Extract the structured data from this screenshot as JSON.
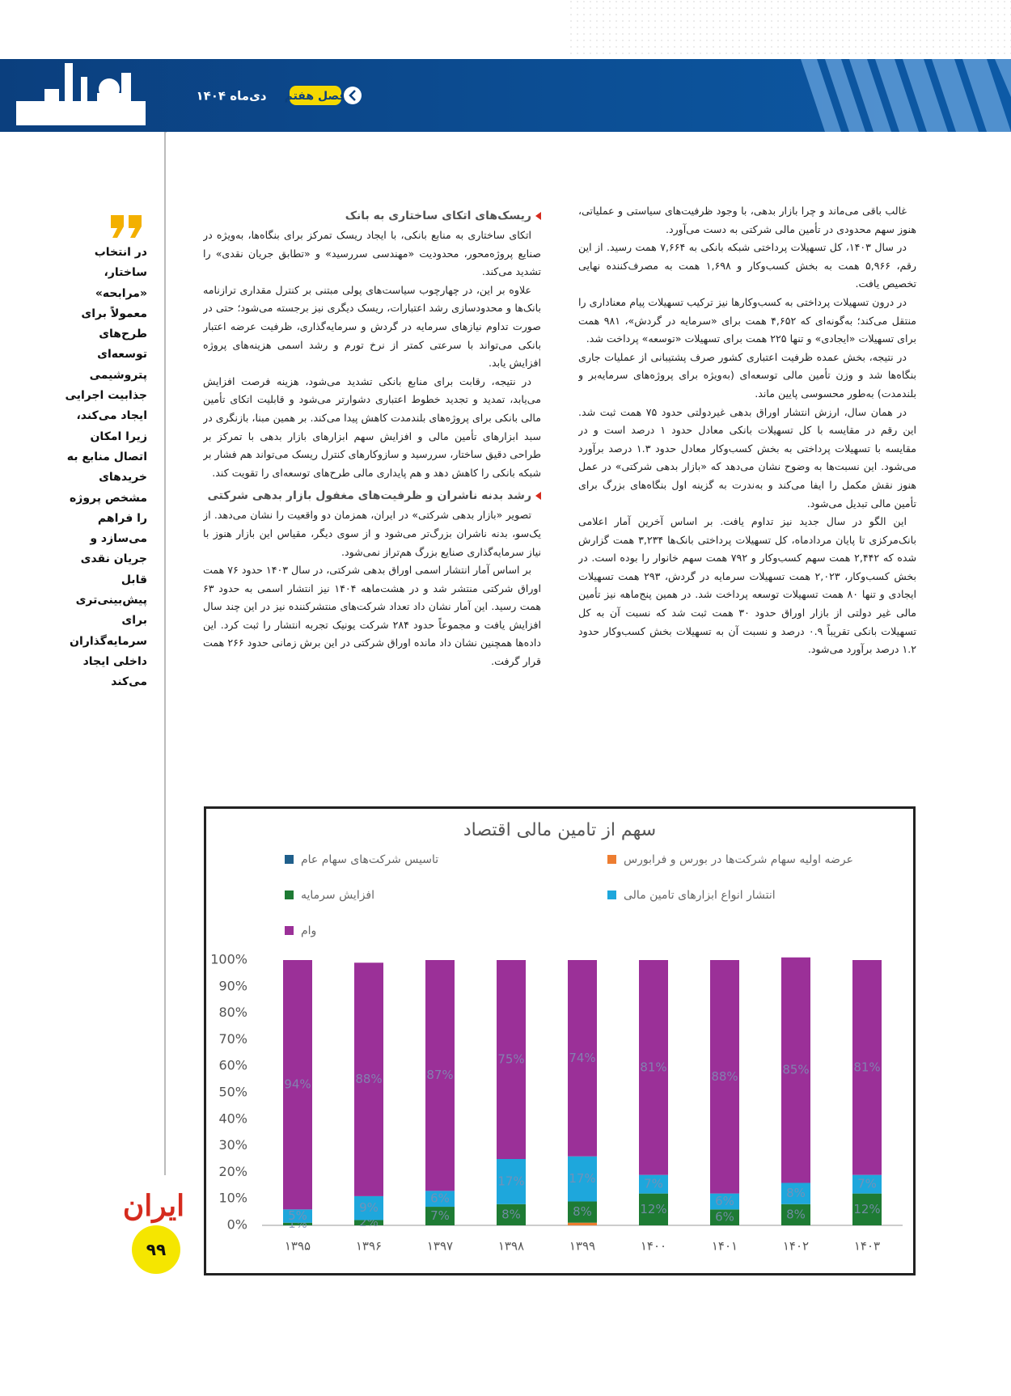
{
  "header": {
    "issue": "دی‌ماه ۱۴۰۴",
    "section": "فصل هفتم"
  },
  "sidebar": {
    "quote": "در انتخاب ساختار، «مرابحه» معمولاً برای طرح‌های توسعه‌ای پتروشیمی جذابیت اجرایی ایجاد می‌کند، زیرا امکان اتصال منابع به خریدهای مشخص پروژه را فراهم می‌سازد و جریان نقدی قابل پیش‌بینی‌تری برای سرمایه‌گذاران داخلی ایجاد می‌کند",
    "logo": "ایران",
    "page_number": "۹۹"
  },
  "right_column": {
    "paragraphs": [
      "غالب باقی می‌ماند و چرا بازار بدهی، با وجود ظرفیت‌های سیاستی و عملیاتی، هنوز سهم محدودی در تأمین مالی شرکتی به دست می‌آورد.",
      "در سال ۱۴۰۳، کل تسهیلات پرداختی شبکه بانکی به ۷,۶۶۴ همت رسید. از این رقم، ۵,۹۶۶ همت به بخش کسب‌وکار و ۱,۶۹۸ همت به مصرف‌کننده نهایی تخصیص یافت.",
      "در درون تسهیلات پرداختی به کسب‌وکارها نیز ترکیب تسهیلات پیام معناداری را منتقل می‌کند؛ به‌گونه‌ای که ۴,۶۵۲ همت برای «سرمایه در گردش»، ۹۸۱ همت برای تسهیلات «ایجادی» و تنها ۲۲۵ همت برای تسهیلات «توسعه» پرداخت شد.",
      "در نتیجه، بخش عمده ظرفیت اعتباری کشور صرف پشتیبانی از عملیات جاری بنگاه‌ها شد و وزن تأمین مالی توسعه‌ای (به‌ویژه برای پروژه‌های سرمایه‌بر و بلندمدت) به‌طور محسوسی پایین ماند.",
      "در همان سال، ارزش انتشار اوراق بدهی غیردولتی حدود ۷۵ همت ثبت شد. این رقم در مقایسه با کل تسهیلات بانکی معادل حدود ۱ درصد است و در مقایسه با تسهیلات پرداختی به بخش کسب‌وکار معادل حدود ۱.۳ درصد برآورد می‌شود. این نسبت‌ها به وضوح نشان می‌دهد که «بازار بدهی شرکتی» در عمل هنوز نقش مکمل را ایفا می‌کند و به‌ندرت به گزینه اول بنگاه‌های بزرگ برای تأمین مالی تبدیل می‌شود.",
      "این الگو در سال جدید نیز تداوم یافت. بر اساس آخرین آمار اعلامی بانک‌مرکزی تا پایان مردادماه، کل تسهیلات پرداختی بانک‌ها ۳,۲۳۴ همت گزارش شده که ۲,۴۴۲ همت سهم کسب‌وکار و ۷۹۲ همت سهم خانوار را بوده است. در بخش کسب‌وکار، ۲,۰۲۳ همت تسهیلات سرمایه در گردش، ۲۹۳ همت تسهیلات ایجادی و تنها ۸۰ همت تسهیلات توسعه پرداخت شد. در همین پنج‌ماهه نیز تأمین مالی غیر دولتی از بازار اوراق حدود ۳۰ همت ثبت شد که نسبت آن به کل تسهیلات بانکی تقریباً ۰.۹ درصد و نسبت آن به تسهیلات بخش کسب‌وکار حدود ۱.۲ درصد برآورد می‌شود."
    ]
  },
  "left_column": {
    "sections": [
      {
        "heading": "ریسک‌های اتکای ساختاری به بانک",
        "paragraphs": [
          "اتکای ساختاری به منابع بانکی، با ایجاد ریسک تمرکز برای بنگاه‌ها، به‌ویژه در صنایع پروژه‌محور، محدودیت «مهندسی سررسید» و «تطابق جریان نقدی» را تشدید می‌کند.",
          "علاوه بر این، در چهارچوب سیاست‌های پولی مبتنی بر کنترل مقداری ترازنامه بانک‌ها و محدودسازی رشد اعتبارات، ریسک دیگری نیز برجسته می‌شود؛ حتی در صورت تداوم نیازهای سرمایه در گردش و سرمایه‌گذاری، ظرفیت عرضه اعتبار بانکی می‌تواند با سرعتی کمتر از نرخ تورم و رشد اسمی هزینه‌های پروژه افزایش یابد.",
          "در نتیجه، رقابت برای منابع بانکی تشدید می‌شود، هزینه فرصت افزایش می‌یابد، تمدید و تجدید خطوط اعتباری دشوارتر می‌شود و قابلیت اتکای تأمین مالی بانکی برای پروژه‌های بلندمدت کاهش پیدا می‌کند. بر همین مبنا، بازنگری در سبد ابزارهای تأمین مالی و افزایش سهم ابزارهای بازار بدهی با تمرکز بر طراحی دقیق ساختار، سررسید و سازوکارهای کنترل ریسک می‌تواند هم فشار بر شبکه بانکی را کاهش دهد و هم پایداری مالی طرح‌های توسعه‌ای را تقویت کند."
        ]
      },
      {
        "heading": "رشد بدنه ناشران و ظرفیت‌های مغفول بازار بدهی شرکتی",
        "paragraphs": [
          "تصویر «بازار بدهی شرکتی» در ایران، همزمان دو واقعیت را نشان می‌دهد. از یک‌سو، بدنه ناشران بزرگ‌تر می‌شود و از سوی دیگر، مقیاس این بازار هنوز با نیاز سرمایه‌گذاری صنایع بزرگ هم‌تراز نمی‌شود.",
          "بر اساس آمار انتشار اسمی اوراق بدهی شرکتی، در سال ۱۴۰۳ حدود ۷۶ همت اوراق شرکتی منتشر شد و در هشت‌ماهه ۱۴۰۴ نیز انتشار اسمی به حدود ۶۳ همت رسید. این آمار نشان داد تعداد شرکت‌های منتشرکننده نیز در این چند سال افزایش یافت و مجموعاً حدود ۲۸۴ شرکت یونیک تجربه انتشار را ثبت کرد. این داده‌ها همچنین نشان داد مانده اوراق شرکتی در این برش زمانی حدود ۲۶۶ همت قرار گرفت."
        ]
      }
    ]
  },
  "chart_data": {
    "type": "stacked_bar",
    "title": "سهم از تامین مالی اقتصاد",
    "categories": [
      "۱۳۹۵",
      "۱۳۹۶",
      "۱۳۹۷",
      "۱۳۹۸",
      "۱۳۹۹",
      "۱۴۰۰",
      "۱۴۰۱",
      "۱۴۰۲",
      "۱۴۰۳"
    ],
    "series": [
      {
        "name": "تاسیس شرکت‌های سهام عام",
        "color": "#1f5f8b",
        "values": [
          0,
          0,
          0,
          0,
          0,
          0,
          0,
          0,
          0
        ]
      },
      {
        "name": "عرضه اولیه سهام شرکت‌ها در بورس و فرابورس",
        "color": "#ed7d31",
        "values": [
          0,
          0,
          0,
          0,
          1,
          0,
          0,
          0,
          0
        ]
      },
      {
        "name": "افزایش سرمایه",
        "color": "#1e7b34",
        "values": [
          1,
          2,
          7,
          8,
          8,
          12,
          6,
          8,
          12
        ],
        "value_labels": [
          "1%",
          "2%",
          "7%",
          "8%",
          "8%",
          "12%",
          "6%",
          "8%",
          "12%"
        ]
      },
      {
        "name": "انتشار انواع ابزارهای تامین مالی",
        "color": "#1ea7dc",
        "values": [
          5,
          9,
          6,
          17,
          17,
          7,
          6,
          8,
          7
        ],
        "value_labels": [
          "5%",
          "9%",
          "6%",
          "17%",
          "17%",
          "7%",
          "6%",
          "8%",
          "7%"
        ]
      },
      {
        "name": "وام",
        "color": "#9b3098",
        "values": [
          94,
          88,
          87,
          75,
          74,
          81,
          88,
          85,
          81
        ],
        "value_labels": [
          "94%",
          "88%",
          "87%",
          "75%",
          "74%",
          "81%",
          "88%",
          "85%",
          "81%"
        ]
      }
    ],
    "ylim": [
      0,
      100
    ],
    "yticks": [
      {
        "value": 0,
        "label": "0%"
      },
      {
        "value": 10,
        "label": "10%"
      },
      {
        "value": 20,
        "label": "20%"
      },
      {
        "value": 30,
        "label": "30%"
      },
      {
        "value": 40,
        "label": "40%"
      },
      {
        "value": 50,
        "label": "50%"
      },
      {
        "value": 60,
        "label": "60%"
      },
      {
        "value": 70,
        "label": "70%"
      },
      {
        "value": 80,
        "label": "80%"
      },
      {
        "value": 90,
        "label": "90%"
      },
      {
        "value": 100,
        "label": "100%"
      }
    ]
  }
}
